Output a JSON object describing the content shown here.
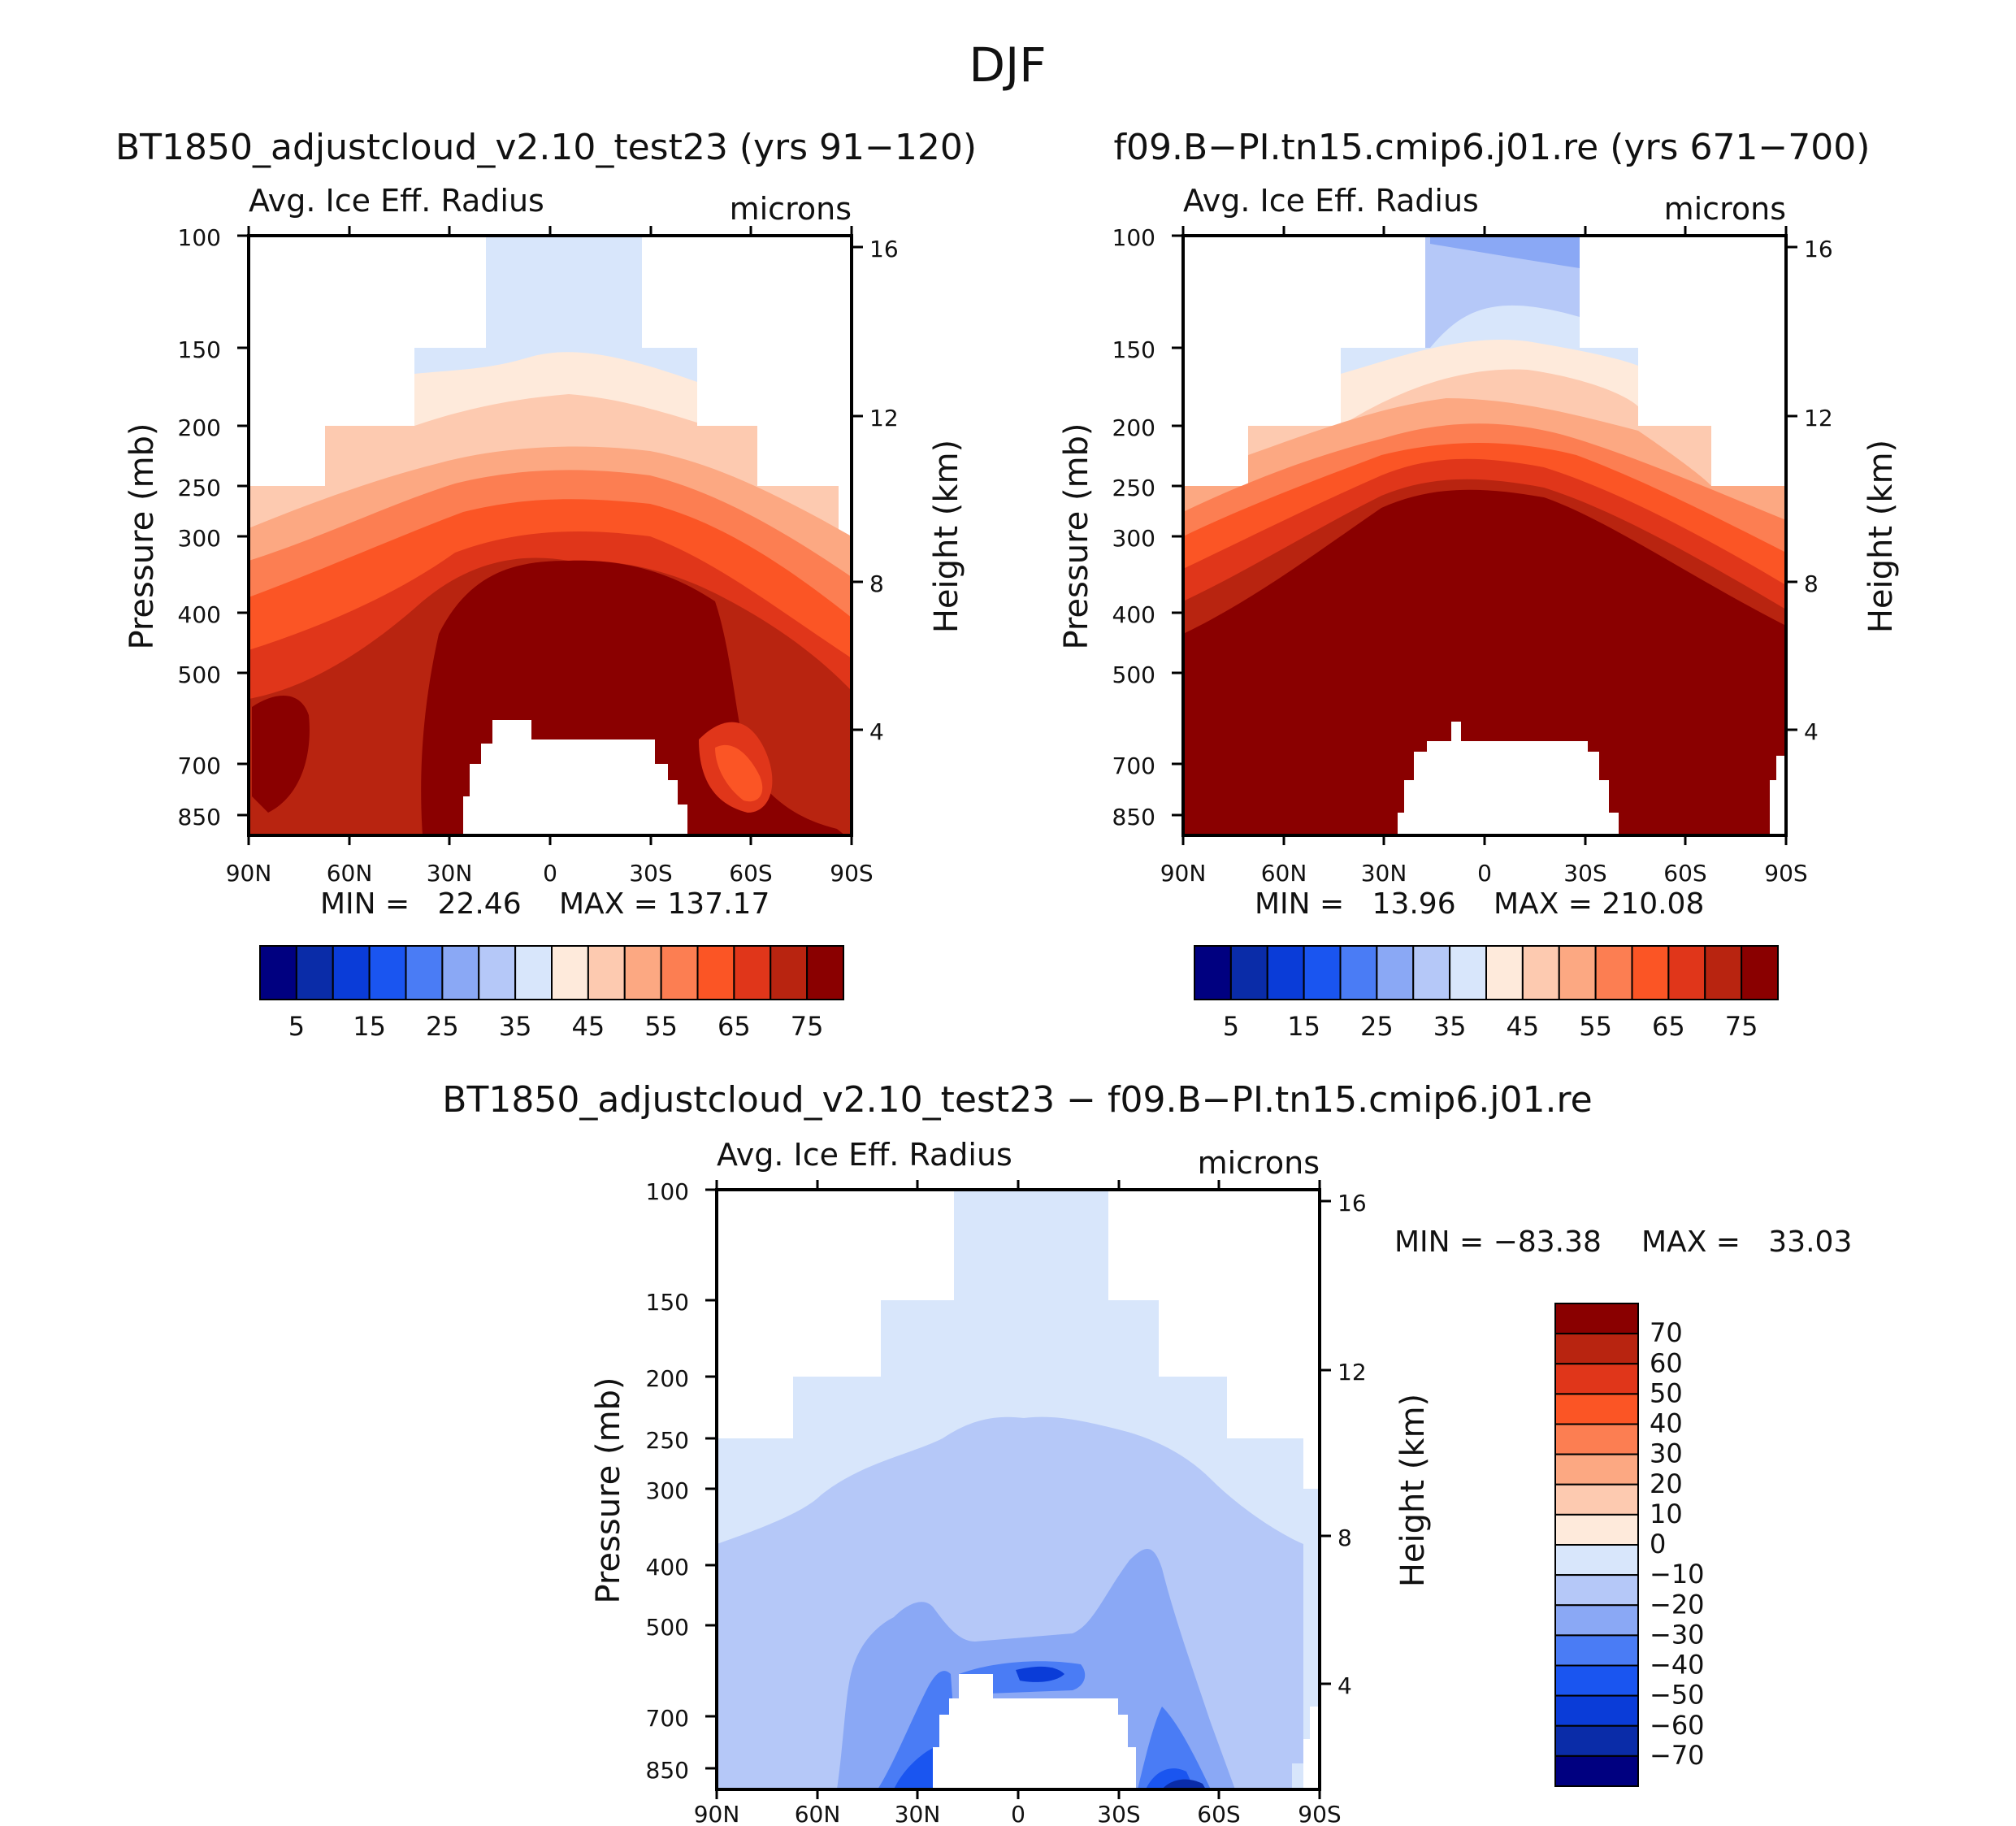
{
  "page": {
    "title": "DJF"
  },
  "colors": {
    "absolute": [
      "#000080",
      "#0a2ca8",
      "#0a3cd8",
      "#1a55f0",
      "#4a7cf5",
      "#8aa8f5",
      "#b5c8f8",
      "#d8e6fb",
      "#feeadb",
      "#fdcab0",
      "#fca882",
      "#fc7e52",
      "#fb5525",
      "#e0361a",
      "#b82410",
      "#8a0000"
    ],
    "diff": [
      "#000080",
      "#0a2ca8",
      "#0a3cd8",
      "#1a55f0",
      "#4a7cf5",
      "#8aa8f5",
      "#b5c8f8",
      "#d8e6fb",
      "#feeadb",
      "#fdcab0",
      "#fca882",
      "#fc7e52",
      "#fb5525",
      "#e0361a",
      "#b82410",
      "#8a0000"
    ]
  },
  "chart_data": [
    {
      "type": "heatmap",
      "title": "BT1850_adjustcloud_v2.10_test23 (yrs 91−120)",
      "subtitle_left": "Avg. Ice Eff. Radius",
      "subtitle_right": "microns",
      "ylabel": "Pressure (mb)",
      "ylabel_right": "Height (km)",
      "x_ticks": [
        "90N",
        "60N",
        "30N",
        "0",
        "30S",
        "60S",
        "90S"
      ],
      "y_ticks": [
        "100",
        "150",
        "200",
        "250",
        "300",
        "400",
        "500",
        "700",
        "850"
      ],
      "y_right_ticks": [
        "16",
        "12",
        "8",
        "4"
      ],
      "ylim": [
        100,
        925
      ],
      "min_text": "MIN =   22.46",
      "max_text": "MAX = 137.17",
      "colorbar_labels": [
        "5",
        "15",
        "25",
        "35",
        "45",
        "55",
        "65",
        "75"
      ],
      "contour_levels": [
        5,
        10,
        15,
        20,
        25,
        30,
        35,
        40,
        45,
        50,
        55,
        60,
        65,
        70,
        75
      ]
    },
    {
      "type": "heatmap",
      "title": "f09.B−PI.tn15.cmip6.j01.re (yrs 671−700)",
      "subtitle_left": "Avg. Ice Eff. Radius",
      "subtitle_right": "microns",
      "ylabel": "Pressure (mb)",
      "ylabel_right": "Height (km)",
      "x_ticks": [
        "90N",
        "60N",
        "30N",
        "0",
        "30S",
        "60S",
        "90S"
      ],
      "y_ticks": [
        "100",
        "150",
        "200",
        "250",
        "300",
        "400",
        "500",
        "700",
        "850"
      ],
      "y_right_ticks": [
        "16",
        "12",
        "8",
        "4"
      ],
      "ylim": [
        100,
        925
      ],
      "min_text": "MIN =   13.96",
      "max_text": "MAX = 210.08",
      "colorbar_labels": [
        "5",
        "15",
        "25",
        "35",
        "45",
        "55",
        "65",
        "75"
      ],
      "contour_levels": [
        5,
        10,
        15,
        20,
        25,
        30,
        35,
        40,
        45,
        50,
        55,
        60,
        65,
        70,
        75
      ]
    },
    {
      "type": "heatmap",
      "title": "BT1850_adjustcloud_v2.10_test23 − f09.B−PI.tn15.cmip6.j01.re",
      "subtitle_left": "Avg. Ice Eff. Radius",
      "subtitle_right": "microns",
      "ylabel": "Pressure (mb)",
      "ylabel_right": "Height (km)",
      "x_ticks": [
        "90N",
        "60N",
        "30N",
        "0",
        "30S",
        "60S",
        "90S"
      ],
      "y_ticks": [
        "100",
        "150",
        "200",
        "250",
        "300",
        "400",
        "500",
        "700",
        "850"
      ],
      "y_right_ticks": [
        "16",
        "12",
        "8",
        "4"
      ],
      "ylim": [
        100,
        925
      ],
      "min_text": "MIN = −83.38",
      "max_text": "MAX =   33.03",
      "colorbar_labels": [
        "70",
        "60",
        "50",
        "40",
        "30",
        "20",
        "10",
        "0",
        "−10",
        "−20",
        "−30",
        "−40",
        "−50",
        "−60",
        "−70"
      ],
      "contour_levels": [
        -70,
        -60,
        -50,
        -40,
        -30,
        -20,
        -10,
        0,
        10,
        20,
        30,
        40,
        50,
        60,
        70
      ]
    }
  ]
}
